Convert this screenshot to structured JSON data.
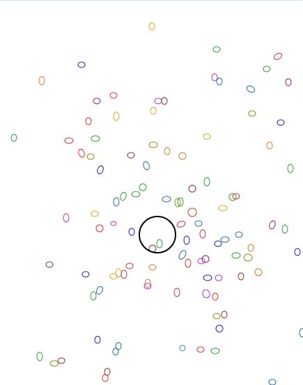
{
  "game": {
    "cursor": {
      "shape": "circle",
      "color": "#000000"
    },
    "particles": {
      "shape": "ellipse-outline",
      "palette": [
        "#1a1ab0",
        "#1e9e3a",
        "#e02a2a",
        "#e3a21a",
        "#c02ac0",
        "#8a2a2a",
        "#1a6aa0",
        "#8a8a10",
        "#d07a30",
        "#2aa02a",
        "#8a1a7a",
        "#2a8ab0"
      ]
    }
  }
}
